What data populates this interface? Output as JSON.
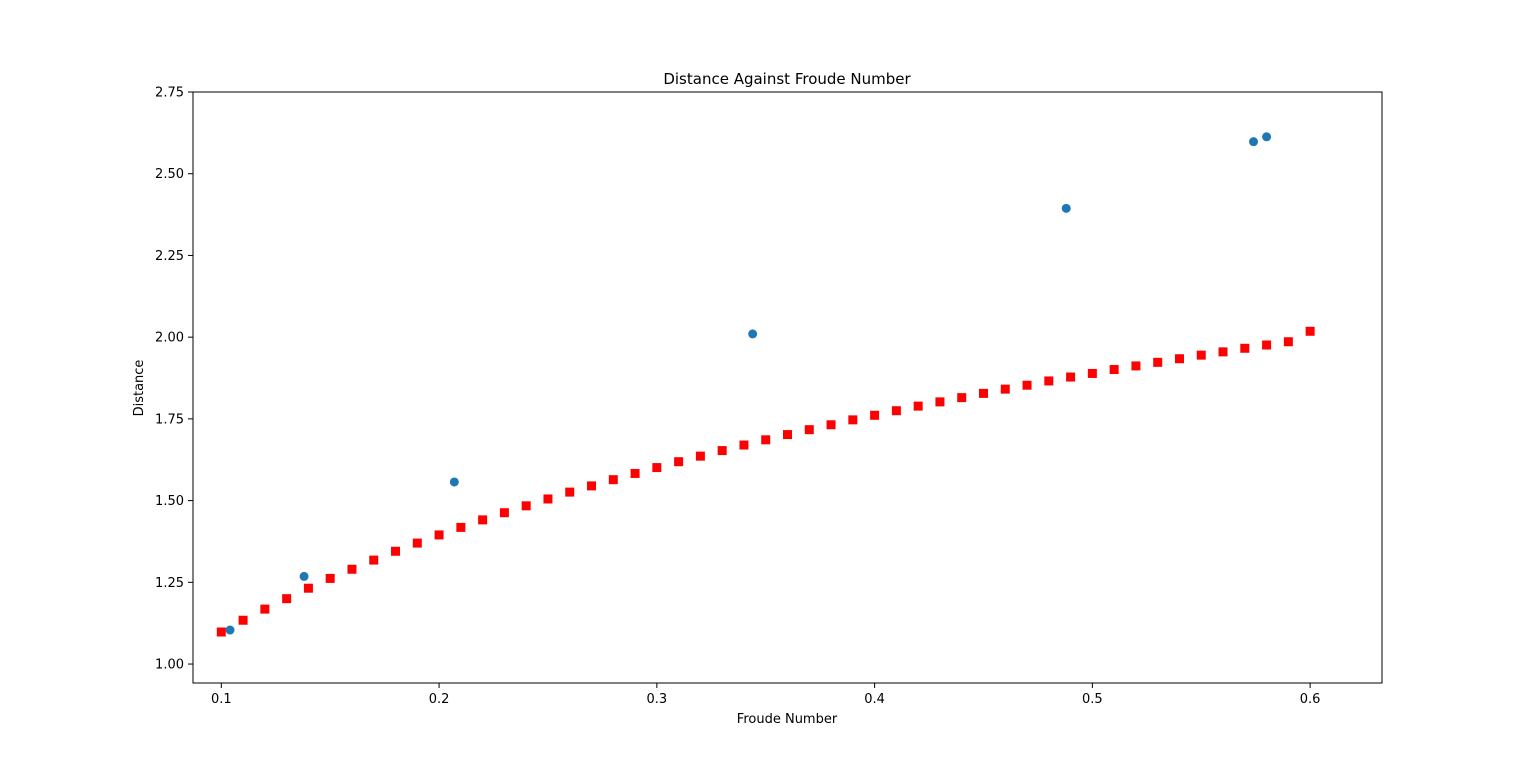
{
  "chart_data": {
    "type": "scatter",
    "title": "Distance Against Froude Number",
    "xlabel": "Froude Number",
    "ylabel": "Distance",
    "xlim": [
      0.087,
      0.633
    ],
    "ylim": [
      0.942,
      2.75
    ],
    "xticks": [
      0.1,
      0.2,
      0.3,
      0.4,
      0.5,
      0.6
    ],
    "xtick_labels": [
      "0.1",
      "0.2",
      "0.3",
      "0.4",
      "0.5",
      "0.6"
    ],
    "yticks": [
      1.0,
      1.25,
      1.5,
      1.75,
      2.0,
      2.25,
      2.5,
      2.75
    ],
    "ytick_labels": [
      "1.00",
      "1.25",
      "1.50",
      "1.75",
      "2.00",
      "2.25",
      "2.50",
      "2.75"
    ],
    "grid": false,
    "series": [
      {
        "marker": "circle",
        "color": "#1f77b4",
        "x": [
          0.104,
          0.138,
          0.207,
          0.344,
          0.488,
          0.574,
          0.58
        ],
        "y": [
          1.104,
          1.268,
          1.557,
          2.01,
          2.394,
          2.598,
          2.613
        ]
      },
      {
        "marker": "square",
        "color": "#ff0000",
        "x": [
          0.1,
          0.11,
          0.12,
          0.13,
          0.14,
          0.15,
          0.16,
          0.17,
          0.18,
          0.19,
          0.2,
          0.21,
          0.22,
          0.23,
          0.24,
          0.25,
          0.26,
          0.27,
          0.28,
          0.29,
          0.3,
          0.31,
          0.32,
          0.33,
          0.34,
          0.35,
          0.36,
          0.37,
          0.38,
          0.39,
          0.4,
          0.41,
          0.42,
          0.43,
          0.44,
          0.45,
          0.46,
          0.47,
          0.48,
          0.49,
          0.5,
          0.51,
          0.52,
          0.53,
          0.54,
          0.55,
          0.56,
          0.57,
          0.58,
          0.59,
          0.6
        ],
        "y": [
          1.098,
          1.134,
          1.168,
          1.2,
          1.232,
          1.262,
          1.29,
          1.318,
          1.345,
          1.37,
          1.395,
          1.418,
          1.441,
          1.463,
          1.484,
          1.505,
          1.526,
          1.545,
          1.564,
          1.583,
          1.601,
          1.619,
          1.636,
          1.653,
          1.67,
          1.686,
          1.702,
          1.717,
          1.732,
          1.747,
          1.761,
          1.775,
          1.789,
          1.802,
          1.815,
          1.828,
          1.841,
          1.853,
          1.866,
          1.878,
          1.889,
          1.901,
          1.912,
          1.923,
          1.934,
          1.945,
          1.955,
          1.966,
          1.976,
          1.986,
          2.018
        ]
      }
    ]
  }
}
